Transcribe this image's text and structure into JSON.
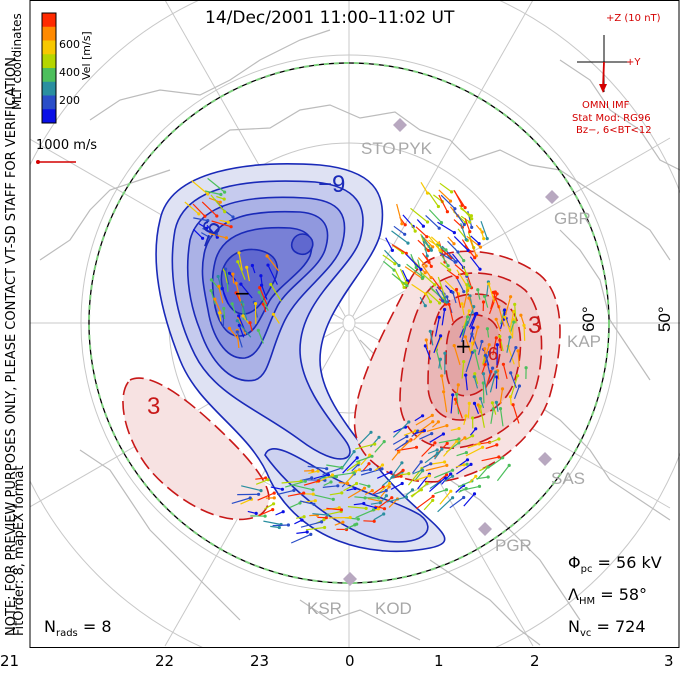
{
  "title": "14/Dec/2001 11:00–11:02 UT",
  "colorbar": {
    "label": "Vel [m/s]",
    "ticks": [
      "600",
      "400",
      "200"
    ],
    "colors": [
      "#ff2a00",
      "#ff8a00",
      "#f7c800",
      "#b5d600",
      "#4cbf5c",
      "#2a8fa0",
      "#2a4ec8",
      "#0a10e6"
    ]
  },
  "coords_label": "MLT coordinates",
  "ref_vector": "1000 m/s",
  "side_notice": "NOTE: FOR PREVIEW PURPOSES ONLY, PLEASE CONTACT VT-SD STAFF FOR VERIFICATION.",
  "fit_info": "FitOrder: 8, mapEX format",
  "imf": {
    "bz_label": "+Z (10 nT)",
    "by_label": "+Y",
    "source": "OMNI IMF",
    "model_line1": "Stat Mod: RG96",
    "model_line2": "Bz−, 6<BT<12"
  },
  "radars": [
    "STO",
    "PYK",
    "GBR",
    "KAP",
    "SAS",
    "PGR",
    "KSR",
    "KOD"
  ],
  "lat_labels": [
    "60°",
    "50°"
  ],
  "contour_labels": [
    "−9",
    "−6",
    "3",
    "3",
    "6"
  ],
  "stats": {
    "phi_sym": "Φ",
    "phi_sub": "pc",
    "phi_val": "= 56 kV",
    "lam_sym": "Λ",
    "lam_sub": "HM",
    "lam_val": "= 58°",
    "nvc_sym": "N",
    "nvc_sub": "vc",
    "nvc_val": "= 724",
    "nrads_sym": "N",
    "nrads_sub": "rads",
    "nrads_val": "= 8"
  },
  "mlt_labels": [
    "21",
    "22",
    "23",
    "0",
    "1",
    "2",
    "3"
  ],
  "cell_markers": [
    "−",
    "+"
  ]
}
